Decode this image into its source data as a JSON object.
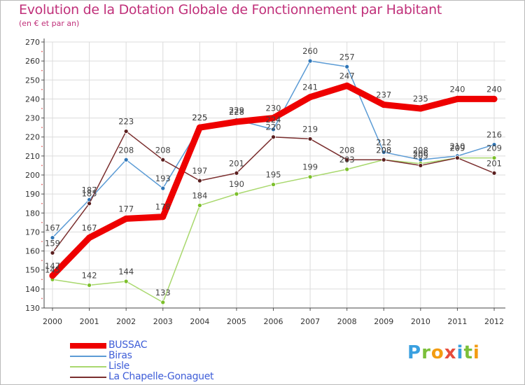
{
  "title": "Evolution de la Dotation Globale de Fonctionnement par Habitant",
  "subtitle": "(en € et par an)",
  "logo": {
    "letters": [
      "P",
      "r",
      "o",
      "x",
      "i",
      "t",
      "i"
    ],
    "colors": [
      "#3aa0e0",
      "#7bbf3a",
      "#f39c12",
      "#e74c3c",
      "#3aa0e0",
      "#7bbf3a",
      "#f39c12"
    ]
  },
  "colors": {
    "title": "#c0307a",
    "legend_text": "#3f5ed8",
    "grid": "#dcdcdc",
    "axis": "#555555"
  },
  "chart_data": {
    "type": "line",
    "title": "Evolution de la Dotation Globale de Fonctionnement par Habitant",
    "subtitle": "(en € et par an)",
    "xlabel": "",
    "ylabel": "",
    "x": [
      "2000",
      "2001",
      "2002",
      "2003",
      "2004",
      "2005",
      "2006",
      "2007",
      "2008",
      "2009",
      "2010",
      "2011",
      "2012"
    ],
    "ylim": [
      130,
      270
    ],
    "yticks": [
      130,
      140,
      150,
      160,
      170,
      180,
      190,
      200,
      210,
      220,
      230,
      240,
      250,
      260,
      270
    ],
    "grid": true,
    "legend_position": "bottom-left",
    "series": [
      {
        "name": "Biras",
        "color": "#5b9bd5",
        "marker": "#2e75b6",
        "values": [
          167,
          187,
          208,
          193,
          225,
          229,
          224,
          260,
          257,
          212,
          208,
          210,
          216
        ]
      },
      {
        "name": "Lisle",
        "color": "#a9d86e",
        "marker": "#7cbf2b",
        "values": [
          145,
          142,
          144,
          133,
          184,
          190,
          195,
          199,
          203,
          208,
          206,
          209,
          209
        ]
      },
      {
        "name": "La Chapelle-Gonaguet",
        "color": "#7a2e2e",
        "marker": "#5a1f1f",
        "values": [
          159,
          185,
          223,
          208,
          197,
          201,
          220,
          219,
          208,
          208,
          205,
          209,
          201
        ]
      },
      {
        "name": "BUSSAC",
        "color": "#ee0000",
        "marker": "#ee0000",
        "values": [
          147,
          167,
          177,
          178,
          225,
          228,
          230,
          241,
          247,
          237,
          235,
          240,
          240
        ]
      }
    ],
    "labels": [
      {
        "series": "Biras",
        "values": [
          "167",
          "187",
          "208",
          "193",
          "225",
          "229",
          "224",
          "260",
          "257",
          "212",
          "208",
          "210",
          "216"
        ]
      },
      {
        "series": "Lisle",
        "values": [
          "145",
          "142",
          "144",
          "133",
          "184",
          "190",
          "195",
          "199",
          "203",
          "208",
          "206",
          "209",
          "209"
        ]
      },
      {
        "series": "La Chapelle-Gonaguet",
        "values": [
          "159",
          "185",
          "223",
          "208",
          "197",
          "201",
          "220",
          "219",
          "208",
          "208",
          "205",
          "209",
          "201"
        ]
      },
      {
        "series": "BUSSAC",
        "values": [
          "147",
          "167",
          "177",
          "178",
          "225",
          "228",
          "230",
          "241",
          "247",
          "237",
          "235",
          "240",
          "240"
        ]
      }
    ]
  },
  "legend": [
    {
      "label": "BUSSAC",
      "color": "#ee0000",
      "thick": true
    },
    {
      "label": "Biras",
      "color": "#5b9bd5",
      "thick": false
    },
    {
      "label": "Lisle",
      "color": "#a9d86e",
      "thick": false
    },
    {
      "label": "La Chapelle-Gonaguet",
      "color": "#7a2e2e",
      "thick": false
    }
  ]
}
